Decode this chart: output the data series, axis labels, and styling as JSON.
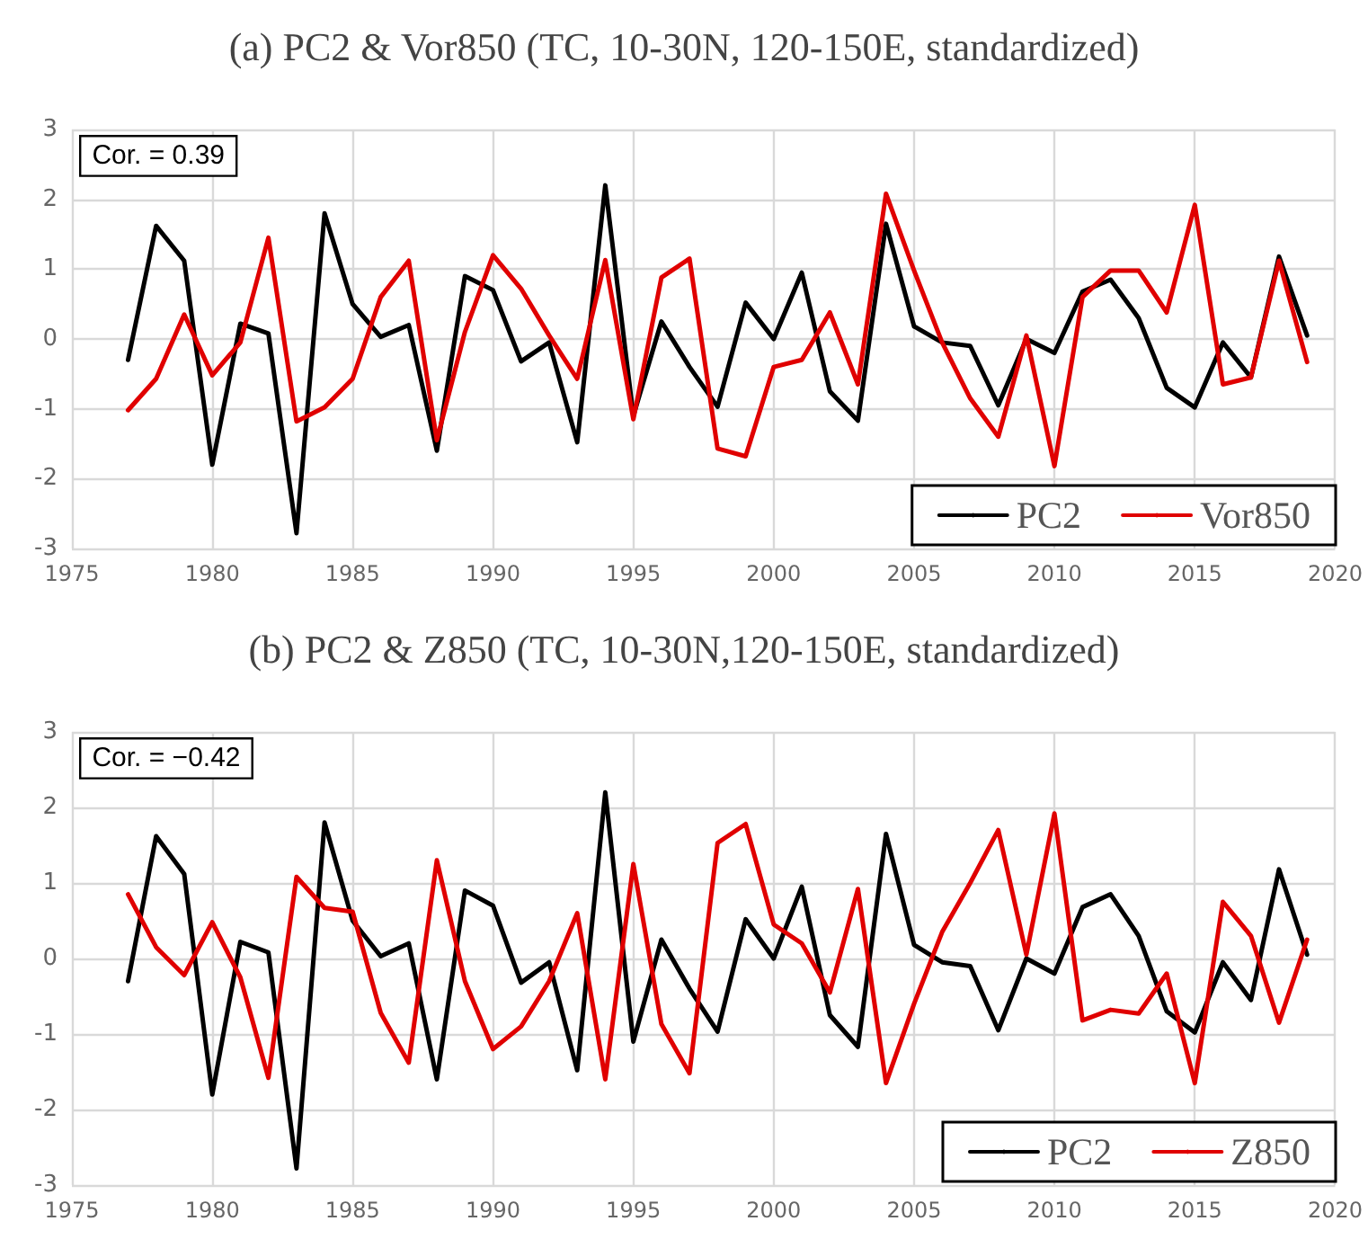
{
  "chart_data": [
    {
      "type": "line",
      "title": "(a) PC2 & Vor850 (TC, 10-30N, 120-150E, standardized)",
      "annotations": [
        "Cor. = 0.39"
      ],
      "x": [
        1977,
        1978,
        1979,
        1980,
        1981,
        1982,
        1983,
        1984,
        1985,
        1986,
        1987,
        1988,
        1989,
        1990,
        1991,
        1992,
        1993,
        1994,
        1995,
        1996,
        1997,
        1998,
        1999,
        2000,
        2001,
        2002,
        2003,
        2004,
        2005,
        2006,
        2007,
        2008,
        2009,
        2010,
        2011,
        2012,
        2013,
        2014,
        2015,
        2016,
        2017,
        2018,
        2019
      ],
      "series": [
        {
          "name": "PC2",
          "color": "#000000",
          "values": [
            -0.3,
            1.62,
            1.12,
            -1.8,
            0.22,
            0.08,
            -2.78,
            1.8,
            0.5,
            0.03,
            0.2,
            -1.6,
            0.9,
            0.7,
            -0.32,
            -0.05,
            -1.48,
            2.2,
            -1.1,
            0.25,
            -0.4,
            -0.97,
            0.52,
            0.0,
            0.95,
            -0.75,
            -1.17,
            1.65,
            0.18,
            -0.05,
            -0.1,
            -0.95,
            0.0,
            -0.2,
            0.68,
            0.85,
            0.3,
            -0.7,
            -0.98,
            -0.05,
            -0.55,
            1.18,
            0.05
          ]
        },
        {
          "name": "Vor850",
          "color": "#e00000",
          "values": [
            -1.02,
            -0.57,
            0.35,
            -0.52,
            -0.05,
            1.45,
            -1.18,
            -0.98,
            -0.57,
            0.6,
            1.12,
            -1.45,
            0.1,
            1.2,
            0.72,
            0.05,
            -0.57,
            1.13,
            -1.15,
            0.88,
            1.15,
            -1.57,
            -1.68,
            -0.4,
            -0.3,
            0.38,
            -0.65,
            2.08,
            0.98,
            -0.05,
            -0.85,
            -1.4,
            0.05,
            -1.82,
            0.6,
            0.98,
            0.98,
            0.38,
            1.92,
            -0.65,
            -0.55,
            1.12,
            -0.33
          ]
        }
      ],
      "xlim": [
        1975,
        2020
      ],
      "xticks": [
        1975,
        1980,
        1985,
        1990,
        1995,
        2000,
        2005,
        2010,
        2015,
        2020
      ],
      "ylim": [
        -3,
        3
      ],
      "yticks": [
        -3,
        -2,
        -1,
        0,
        1,
        2,
        3
      ],
      "grid": true,
      "legend": "bottom right",
      "line_style": "solid"
    },
    {
      "type": "line",
      "title": "(b) PC2 & Z850 (TC, 10-30N,120-150E, standardized)",
      "annotations": [
        "Cor. = −0.42"
      ],
      "x": [
        1977,
        1978,
        1979,
        1980,
        1981,
        1982,
        1983,
        1984,
        1985,
        1986,
        1987,
        1988,
        1989,
        1990,
        1991,
        1992,
        1993,
        1994,
        1995,
        1996,
        1997,
        1998,
        1999,
        2000,
        2001,
        2002,
        2003,
        2004,
        2005,
        2006,
        2007,
        2008,
        2009,
        2010,
        2011,
        2012,
        2013,
        2014,
        2015,
        2016,
        2017,
        2018,
        2019
      ],
      "series": [
        {
          "name": "PC2",
          "color": "#000000",
          "values": [
            -0.3,
            1.62,
            1.12,
            -1.8,
            0.22,
            0.08,
            -2.78,
            1.8,
            0.5,
            0.03,
            0.2,
            -1.6,
            0.9,
            0.7,
            -0.32,
            -0.05,
            -1.48,
            2.2,
            -1.1,
            0.25,
            -0.4,
            -0.97,
            0.52,
            0.0,
            0.95,
            -0.75,
            -1.17,
            1.65,
            0.18,
            -0.05,
            -0.1,
            -0.95,
            0.0,
            -0.2,
            0.68,
            0.85,
            0.3,
            -0.7,
            -0.98,
            -0.05,
            -0.55,
            1.18,
            0.05
          ]
        },
        {
          "name": "Z850",
          "color": "#e00000",
          "values": [
            0.85,
            0.15,
            -0.22,
            0.48,
            -0.25,
            -1.58,
            1.08,
            0.67,
            0.62,
            -0.72,
            -1.38,
            1.3,
            -0.3,
            -1.2,
            -0.9,
            -0.3,
            0.6,
            -1.6,
            1.25,
            -0.87,
            -1.52,
            1.53,
            1.78,
            0.45,
            0.2,
            -0.45,
            0.92,
            -1.65,
            -0.6,
            0.35,
            1.0,
            1.7,
            0.05,
            1.92,
            -0.82,
            -0.68,
            -0.73,
            -0.2,
            -1.65,
            0.75,
            0.3,
            -0.85,
            0.25
          ]
        }
      ],
      "xlim": [
        1975,
        2020
      ],
      "xticks": [
        1975,
        1980,
        1985,
        1990,
        1995,
        2000,
        2005,
        2010,
        2015,
        2020
      ],
      "ylim": [
        -3,
        3
      ],
      "yticks": [
        -3,
        -2,
        -1,
        0,
        1,
        2,
        3
      ],
      "grid": true,
      "legend": "bottom right",
      "line_style": "solid"
    }
  ]
}
